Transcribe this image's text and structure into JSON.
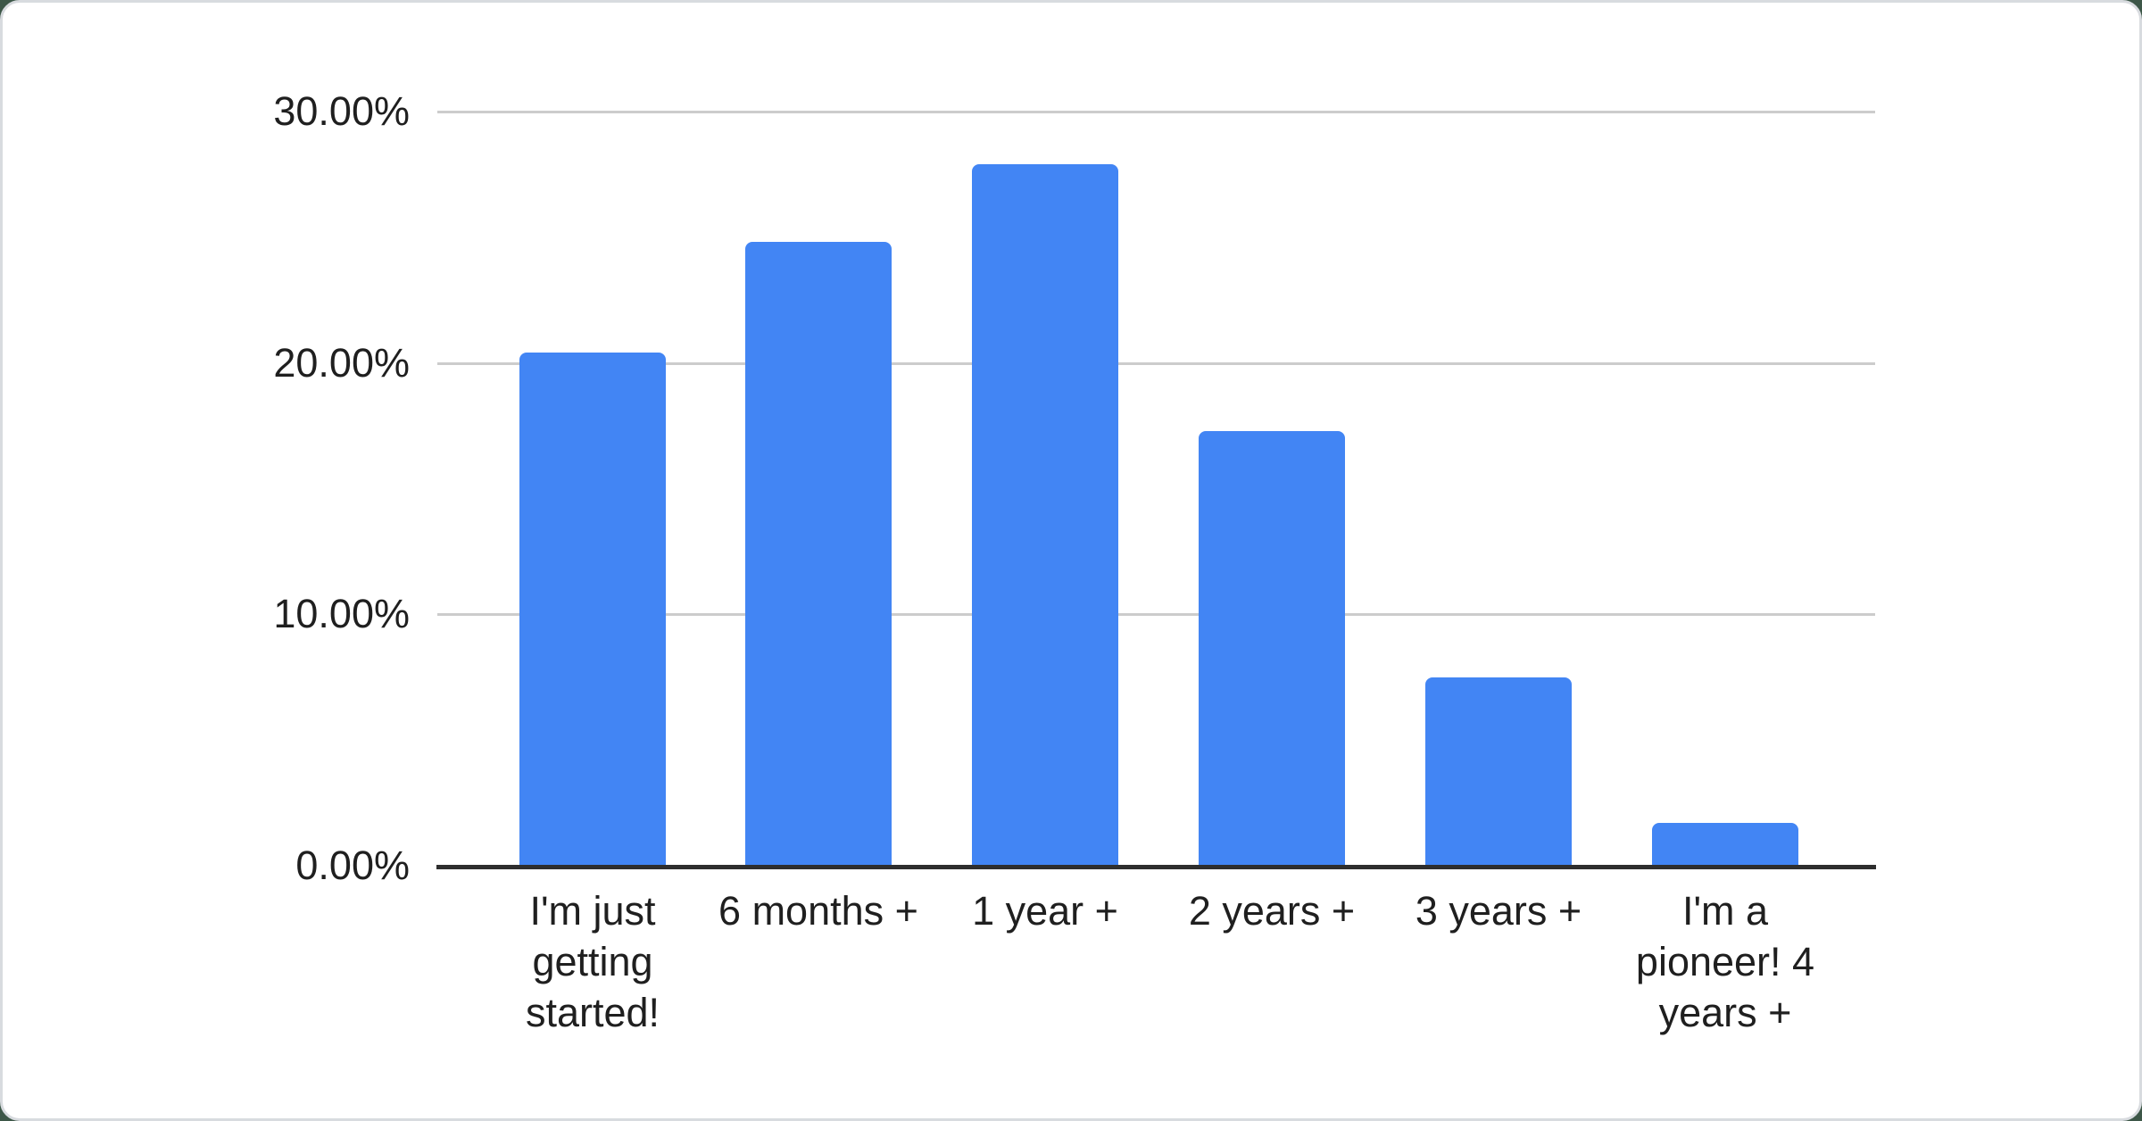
{
  "chart_data": {
    "type": "bar",
    "title": "",
    "xlabel": "",
    "ylabel": "",
    "categories": [
      "I'm just getting started!",
      "6 months +",
      "1 year +",
      "2 years +",
      "3 years +",
      "I'm a pioneer! 4 years +"
    ],
    "values": [
      20.4,
      24.8,
      27.9,
      17.3,
      7.5,
      1.7
    ],
    "value_unit": "percent",
    "ylim": [
      0,
      30
    ],
    "yticks": [
      0,
      10,
      20,
      30
    ],
    "ytick_labels": [
      "0.00%",
      "10.00%",
      "20.00%",
      "30.00%"
    ],
    "grid": "horizontal",
    "legend": "none",
    "bar_corner": "rounded-top"
  },
  "colors": {
    "bar": "#4285f4",
    "gridline": "#cccccc",
    "axis_line": "#2e2e2e",
    "label_text": "#1f1f1f",
    "card_background": "#ffffff",
    "card_edge": "#d8dbdf",
    "page_background": "#3d5748"
  }
}
